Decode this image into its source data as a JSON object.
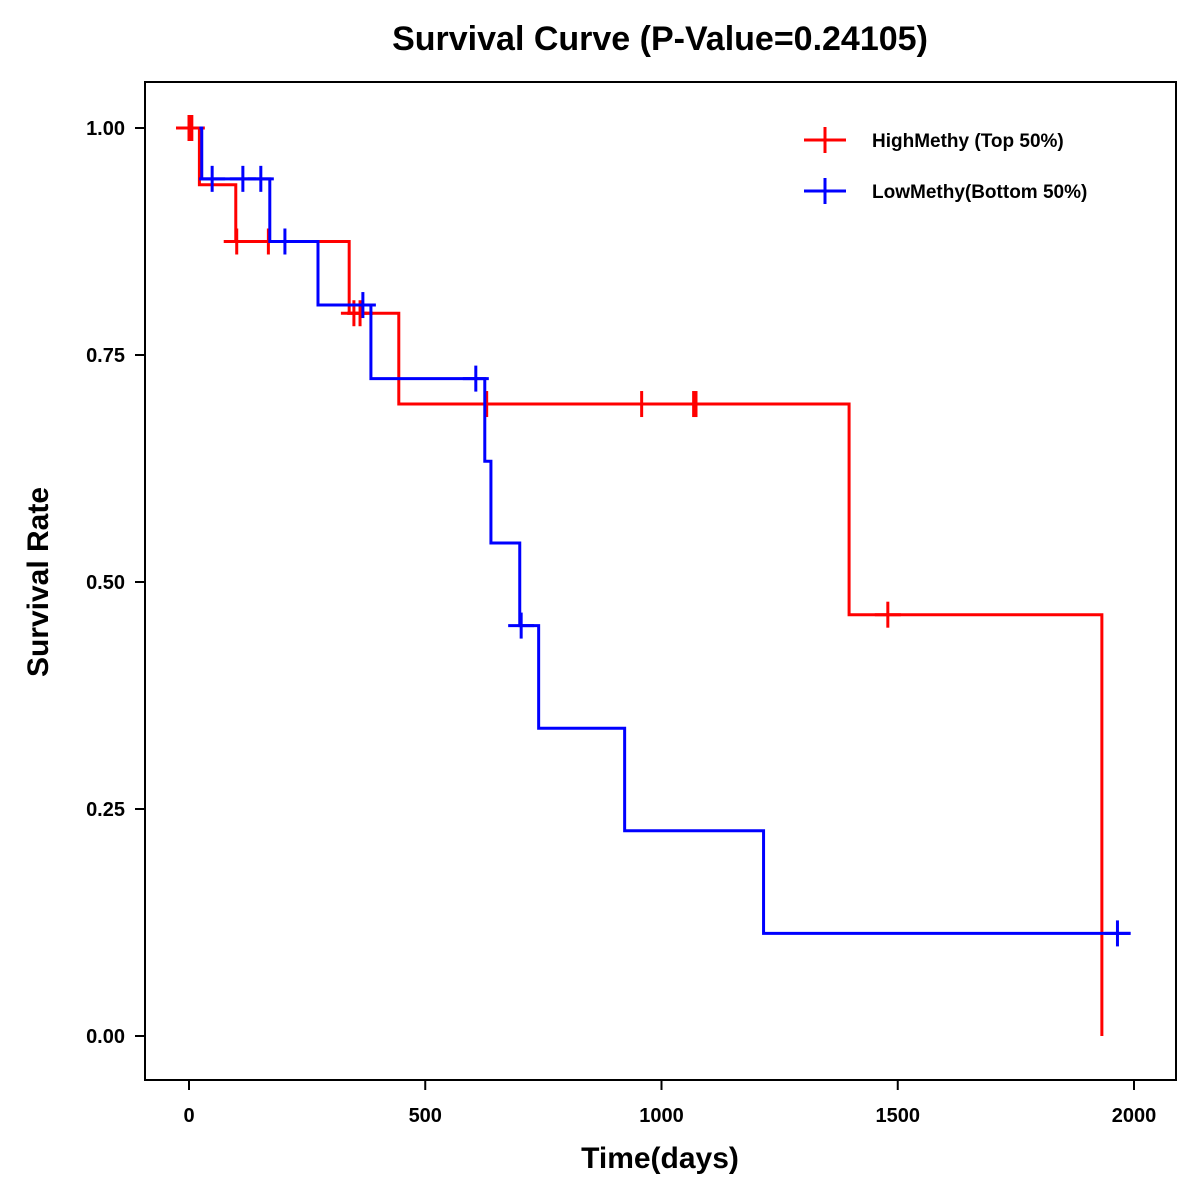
{
  "chart_data": {
    "type": "line",
    "subtype": "kaplan-meier-step",
    "title": "Survival Curve (P-Value=0.24105)",
    "xlabel": "Time(days)",
    "ylabel": "Survival Rate",
    "xlim": [
      -95,
      2085
    ],
    "ylim": [
      -0.05,
      1.05
    ],
    "xticks": [
      0,
      500,
      1000,
      1500,
      2000
    ],
    "xtick_labels": [
      "0",
      "500",
      "1000",
      "1500",
      "2000"
    ],
    "yticks": [
      0,
      0.25,
      0.5,
      0.75,
      1.0
    ],
    "ytick_labels": [
      "0.00",
      "0.25",
      "0.50",
      "0.75",
      "1.00"
    ],
    "grid": false,
    "legend_position": "top-right",
    "series": [
      {
        "name": "HighMethy (Top 50%)",
        "color": "#ff0000",
        "steps": [
          {
            "t": 0,
            "s": 1.0
          },
          {
            "t": 22,
            "s": 0.9375
          },
          {
            "t": 99,
            "s": 0.875
          },
          {
            "t": 339,
            "s": 0.796
          },
          {
            "t": 444,
            "s": 0.696
          },
          {
            "t": 1397,
            "s": 0.464
          },
          {
            "t": 1932,
            "s": 0.0
          }
        ],
        "end_t": 1932,
        "censored": [
          {
            "t": 0,
            "s": 1.0
          },
          {
            "t": 6,
            "s": 1.0
          },
          {
            "t": 101,
            "s": 0.875
          },
          {
            "t": 168,
            "s": 0.875
          },
          {
            "t": 349,
            "s": 0.796
          },
          {
            "t": 362,
            "s": 0.796
          },
          {
            "t": 630,
            "s": 0.696
          },
          {
            "t": 958,
            "s": 0.696
          },
          {
            "t": 1068,
            "s": 0.696
          },
          {
            "t": 1073,
            "s": 0.696
          },
          {
            "t": 1479,
            "s": 0.464
          }
        ]
      },
      {
        "name": "LowMethy(Bottom 50%)",
        "color": "#0000ff",
        "steps": [
          {
            "t": 22,
            "s": 1.0
          },
          {
            "t": 27,
            "s": 0.944
          },
          {
            "t": 171,
            "s": 0.875
          },
          {
            "t": 273,
            "s": 0.805
          },
          {
            "t": 385,
            "s": 0.724
          },
          {
            "t": 626,
            "s": 0.633
          },
          {
            "t": 639,
            "s": 0.543
          },
          {
            "t": 700,
            "s": 0.452
          },
          {
            "t": 740,
            "s": 0.339
          },
          {
            "t": 922,
            "s": 0.226
          },
          {
            "t": 1216,
            "s": 0.113
          }
        ],
        "end_t": 1993,
        "censored": [
          {
            "t": 49,
            "s": 0.944
          },
          {
            "t": 114,
            "s": 0.944
          },
          {
            "t": 152,
            "s": 0.944
          },
          {
            "t": 203,
            "s": 0.875
          },
          {
            "t": 368,
            "s": 0.805
          },
          {
            "t": 607,
            "s": 0.724
          },
          {
            "t": 703,
            "s": 0.452
          },
          {
            "t": 1965,
            "s": 0.113
          }
        ]
      }
    ]
  }
}
